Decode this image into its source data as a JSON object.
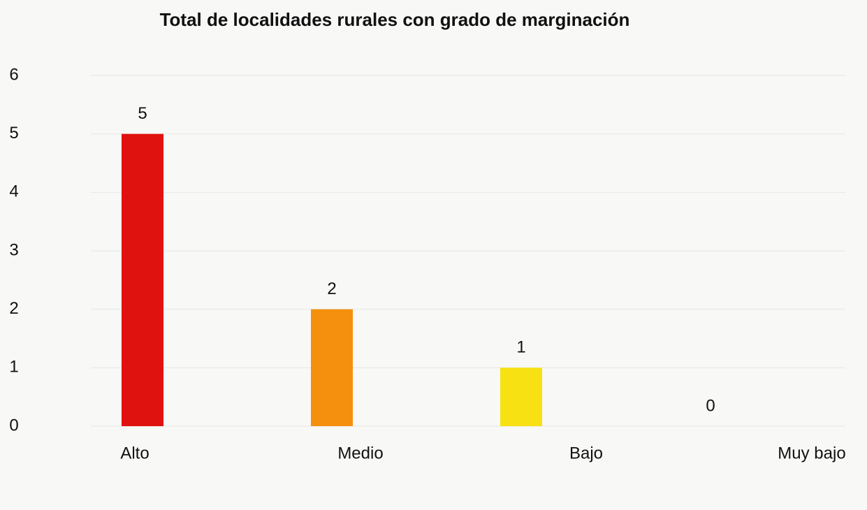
{
  "chart_data": {
    "type": "bar",
    "title": "Total de localidades rurales con grado de marginación",
    "categories": [
      "Alto",
      "Medio",
      "Bajo",
      "Muy bajo"
    ],
    "values": [
      5,
      2,
      1,
      0
    ],
    "colors": [
      "#e0120f",
      "#f5900e",
      "#f7e112",
      "#f7e112"
    ],
    "ylim": [
      0,
      6
    ],
    "yticks": [
      0,
      1,
      2,
      3,
      4,
      5,
      6
    ],
    "grid": true
  }
}
